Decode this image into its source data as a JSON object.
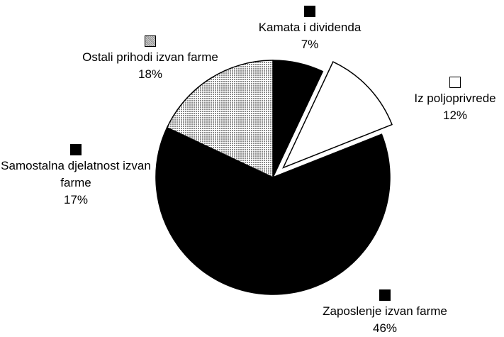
{
  "chart_data": {
    "type": "pie",
    "categories": [
      "Kamata i dividenda",
      "Iz poljoprivrede",
      "Zaposlenje izvan farme",
      "Samostalna djelatnost izvan farme",
      "Ostali prihodi izvan farme"
    ],
    "values": [
      7,
      12,
      46,
      17,
      18
    ],
    "value_labels": [
      "7%",
      "12%",
      "46%",
      "17%",
      "18%"
    ],
    "colors": [
      "#000000",
      "#ffffff",
      "#000000",
      "#000000",
      "#b0b0b0"
    ],
    "explode": [
      1
    ]
  }
}
